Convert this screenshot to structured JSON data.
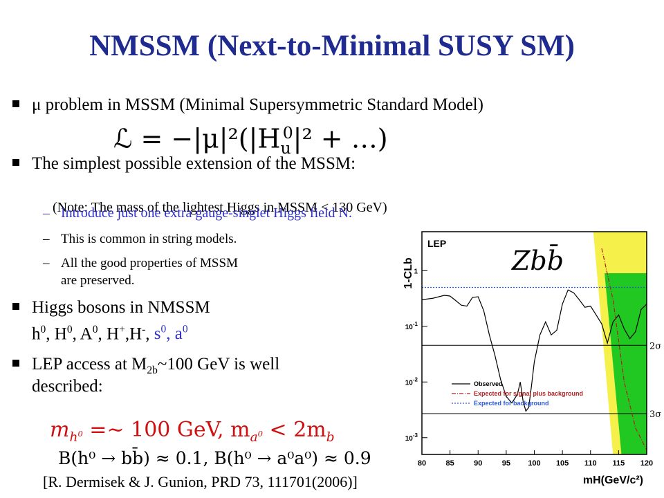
{
  "slide": {
    "title": "NMSSM (Next-to-Minimal SUSY SM)",
    "bullets": {
      "mu_problem": "μ problem in MSSM (Minimal Supersymmetric Standard Model)",
      "lagrangian": "ℒ = −|μ|²(|H",
      "lagrangian_sub_sup": "0",
      "lagrangian_sub": "u",
      "lagrangian_tail": "|² + …)",
      "extension": "The simplest possible extension of the MSSM:",
      "note": "(Note: The mass of the lightest Higgs in MSSM < 130 GeV)",
      "sub_items": [
        "Introduce just one extra gauge-singlet Higgs field N.",
        "This is common in string models.",
        "All the good properties of MSSM",
        "are preserved."
      ],
      "higgs_title": "Higgs bosons in NMSSM",
      "higgs_list_black": "h, H, A, H,H,",
      "higgs_list_blue": "s, a",
      "lep_line1": "LEP access at M",
      "lep_sub": "2b",
      "lep_line1_tail": "~100 GeV is well",
      "lep_line2": "described:"
    },
    "equations": {
      "line1_left": "m",
      "line1_left_sub": "h",
      "line1_mid": " =~ 100 GeV,   m",
      "line1_mid_sub": "a",
      "line1_right": " < 2m",
      "line1_right_sub": "b",
      "line2": "B(h⁰ → bb̄) ≈ 0.1,   B(h⁰ → a⁰a⁰) ≈ 0.9"
    },
    "reference": "[R. Dermisek & J. Gunion, PRD 73, 111701(2006)]"
  },
  "chart_data": {
    "type": "line",
    "title": "Zbb̄",
    "corner_label": "LEP",
    "xlabel": "mH(GeV/c²)",
    "ylabel": "1-CLb",
    "xlim": [
      80,
      120
    ],
    "ylim": [
      0.0005,
      5
    ],
    "log_y": true,
    "x_ticks": [
      "80",
      "85",
      "90",
      "95",
      "100",
      "105",
      "110",
      "115",
      "120"
    ],
    "y_ticks": [
      "1",
      "10-1",
      "10-2",
      "10-3"
    ],
    "sigma_lines": [
      {
        "label": "2σ",
        "value": 0.0455
      },
      {
        "label": "3σ",
        "value": 0.0027
      }
    ],
    "legend": [
      "Observed",
      "Expected for signal plus background",
      "Expected for background"
    ],
    "series": [
      {
        "name": "Observed",
        "color": "#000000",
        "x": [
          80,
          82,
          84,
          85,
          86,
          87,
          88,
          89,
          90,
          91,
          92,
          93,
          94,
          95,
          96,
          97,
          97.5,
          98,
          98.5,
          99,
          99.5,
          100,
          101,
          102,
          103,
          104,
          105,
          106,
          107,
          108,
          109,
          110,
          111,
          112,
          113,
          114,
          115,
          116,
          117,
          118,
          119,
          120
        ],
        "y": [
          0.3,
          0.32,
          0.36,
          0.35,
          0.29,
          0.24,
          0.23,
          0.33,
          0.34,
          0.19,
          0.07,
          0.03,
          0.011,
          0.0055,
          0.0042,
          0.006,
          0.01,
          0.0045,
          0.003,
          0.0035,
          0.0085,
          0.023,
          0.07,
          0.12,
          0.07,
          0.085,
          0.25,
          0.45,
          0.4,
          0.3,
          0.22,
          0.23,
          0.16,
          0.11,
          0.05,
          0.12,
          0.16,
          0.09,
          0.06,
          0.08,
          0.2,
          0.25
        ]
      },
      {
        "name": "Expected for signal plus background",
        "color": "#b02020",
        "x": [
          112,
          114,
          116,
          118,
          120
        ],
        "y": [
          2.5,
          0.3,
          0.01,
          0.0015,
          0.0006
        ]
      },
      {
        "name": "Expected for background",
        "color": "#2a56d8",
        "x": [
          80,
          120
        ],
        "y": [
          0.5,
          0.5
        ]
      }
    ],
    "bands": {
      "two_sigma_color": "#f5f04a",
      "one_sigma_color": "#22c822"
    }
  }
}
